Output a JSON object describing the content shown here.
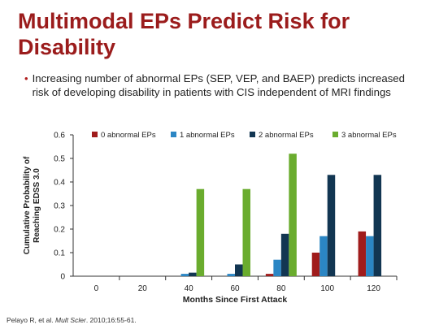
{
  "slide": {
    "title": "Multimodal EPs Predict Risk for Disability",
    "bullet": "Increasing number of abnormal EPs (SEP, VEP, and BAEP) predicts increased risk of developing disability in patients with CIS independent of MRI findings",
    "footnote_authors": "Pelayo R, et al.",
    "footnote_journal": "Mult Scler",
    "footnote_citation": ". 2010;16:55-61."
  },
  "chart_data": {
    "type": "bar",
    "categories": [
      "0",
      "20",
      "40",
      "60",
      "80",
      "100",
      "120"
    ],
    "series": [
      {
        "name": "0 abnormal EPs",
        "color": "#a01c1c",
        "values": [
          0,
          0,
          0,
          0,
          0.01,
          0.1,
          0.19
        ]
      },
      {
        "name": "1 abnormal EPs",
        "color": "#2b86c4",
        "values": [
          0,
          0,
          0.01,
          0.01,
          0.07,
          0.17,
          0.17
        ]
      },
      {
        "name": "2 abnormal EPs",
        "color": "#123652",
        "values": [
          0,
          0,
          0.015,
          0.05,
          0.18,
          0.43,
          0.43
        ]
      },
      {
        "name": "3 abnormal EPs",
        "color": "#6aac2e",
        "values": [
          0,
          0,
          0.37,
          0.37,
          0.52,
          null,
          null
        ]
      }
    ],
    "xlabel": "Months Since First Attack",
    "ylabel": "Cumulative Probability of Reaching EDSS 3.0",
    "ylabel_lines": [
      "Cumulative Probability of",
      "Reaching EDSS 3.0"
    ],
    "ylim": [
      0,
      0.6
    ],
    "yticks": [
      "0",
      "0.1",
      "0.2",
      "0.3",
      "0.4",
      "0.5",
      "0.6"
    ],
    "grid": false,
    "legend_position": "top"
  }
}
